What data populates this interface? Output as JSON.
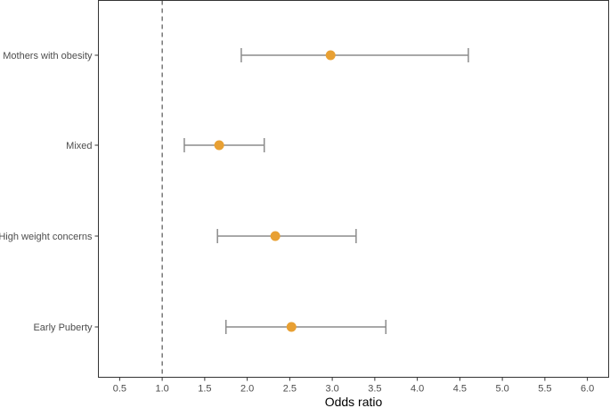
{
  "chart_data": {
    "type": "forest",
    "xlabel": "Odds ratio",
    "xlim": [
      0.25,
      6.25
    ],
    "x_ticks": [
      0.5,
      1.0,
      1.5,
      2.0,
      2.5,
      3.0,
      3.5,
      4.0,
      4.5,
      5.0,
      5.5,
      6.0
    ],
    "x_tick_labels": [
      "0.5",
      "1.0",
      "1.5",
      "2.0",
      "2.5",
      "3.0",
      "3.5",
      "4.0",
      "4.5",
      "5.0",
      "5.5",
      "6.0"
    ],
    "reference_line": 1.0,
    "categories": [
      "Mothers with obesity",
      "Mixed",
      "High weight concerns",
      "Early Puberty"
    ],
    "estimates": [
      2.98,
      1.67,
      2.33,
      2.52
    ],
    "ci_lower": [
      1.93,
      1.26,
      1.65,
      1.75
    ],
    "ci_upper": [
      4.6,
      2.2,
      3.28,
      3.63
    ],
    "point_color": "#E8A033",
    "ci_color": "#8C8C8C",
    "grid": false
  }
}
